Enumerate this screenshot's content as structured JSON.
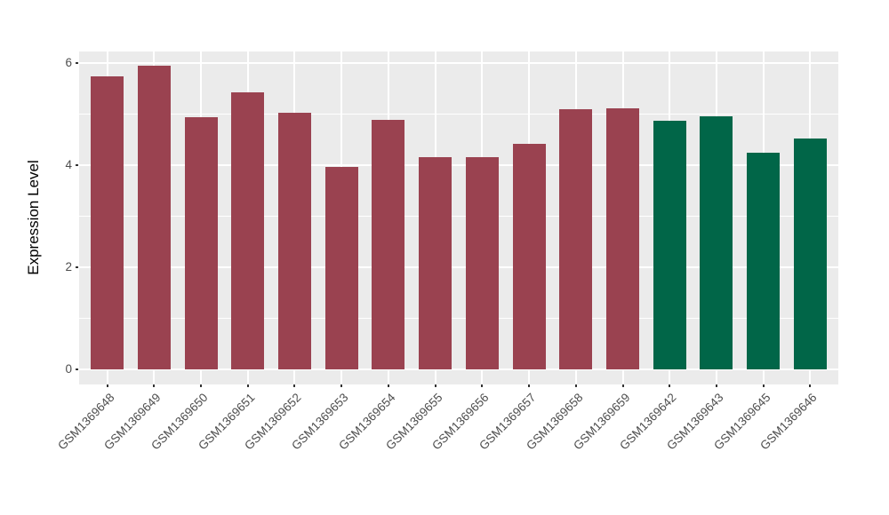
{
  "figure": {
    "background": "#FFFFFF",
    "panel_background": "#EBEBEB",
    "grid_color": "#FFFFFF",
    "tick_mark_color": "#333333",
    "tick_label_color": "#4D4D4D",
    "axis_title_color": "#000000"
  },
  "chart_data": {
    "type": "bar",
    "title": "",
    "xlabel": "",
    "ylabel": "Expression Level",
    "categories": [
      "GSM1369648",
      "GSM1369649",
      "GSM1369650",
      "GSM1369651",
      "GSM1369652",
      "GSM1369653",
      "GSM1369654",
      "GSM1369655",
      "GSM1369656",
      "GSM1369657",
      "GSM1369658",
      "GSM1369659",
      "GSM1369642",
      "GSM1369643",
      "GSM1369645",
      "GSM1369646"
    ],
    "values": [
      5.74,
      5.95,
      4.94,
      5.42,
      5.02,
      3.97,
      4.88,
      4.15,
      4.15,
      4.41,
      5.09,
      5.12,
      4.87,
      4.95,
      4.25,
      4.52
    ],
    "bar_groups": [
      "group1",
      "group1",
      "group1",
      "group1",
      "group1",
      "group1",
      "group1",
      "group1",
      "group1",
      "group1",
      "group1",
      "group1",
      "group2",
      "group2",
      "group2",
      "group2"
    ],
    "group_colors": {
      "group1": "#9A4250",
      "group2": "#016648"
    },
    "yticks": [
      0,
      2,
      4,
      6
    ],
    "yticks_minor": [
      1,
      3,
      5
    ],
    "ylim": [
      -0.3,
      6.23
    ],
    "grid": "on",
    "legend": "none"
  }
}
